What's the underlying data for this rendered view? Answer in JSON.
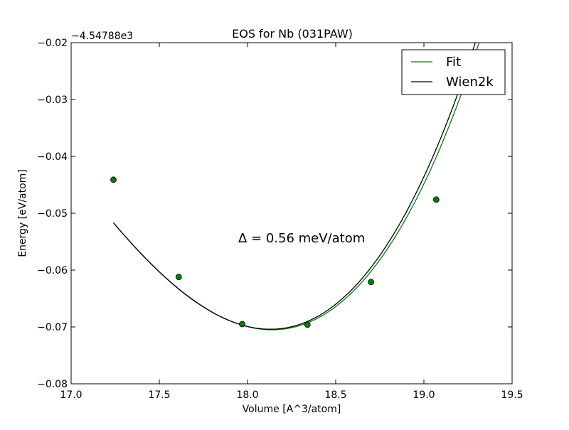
{
  "chart_data": {
    "type": "line",
    "title": "EOS for Nb (031PAW)",
    "xlabel": "Volume [A^3/atom]",
    "ylabel": "Energy [eV/atom]",
    "y_offset_label": "−4.54788e3",
    "xlim": [
      17.0,
      19.5
    ],
    "ylim": [
      -0.08,
      -0.02
    ],
    "x_ticks": [
      17.0,
      17.5,
      18.0,
      18.5,
      19.0,
      19.5
    ],
    "x_tick_labels": [
      "17.0",
      "17.5",
      "18.0",
      "18.5",
      "19.0",
      "19.5"
    ],
    "y_ticks": [
      -0.08,
      -0.07,
      -0.06,
      -0.05,
      -0.04,
      -0.03,
      -0.02
    ],
    "y_tick_labels": [
      "−0.08",
      "−0.07",
      "−0.06",
      "−0.05",
      "−0.04",
      "−0.03",
      "−0.02"
    ],
    "grid": false,
    "legend_position": "top-right",
    "annotation": "Δ = 0.56 meV/atom",
    "series": [
      {
        "name": "Fit",
        "color": "#008000",
        "V0": 18.14,
        "E0": -0.0705,
        "quad": 0.0291,
        "cubic": 0.0065,
        "x_range": [
          17.24,
          19.42
        ]
      },
      {
        "name": "Wien2k",
        "color": "#000000",
        "V0": 18.13,
        "E0": -0.0704,
        "quad": 0.0296,
        "cubic": 0.0067,
        "x_range": [
          17.24,
          19.4
        ]
      }
    ],
    "points": {
      "color": "#008000",
      "x": [
        17.24,
        17.61,
        17.97,
        18.34,
        18.7,
        19.07
      ],
      "y": [
        -0.0441,
        -0.0612,
        -0.0695,
        -0.0696,
        -0.0621,
        -0.0476
      ]
    }
  }
}
